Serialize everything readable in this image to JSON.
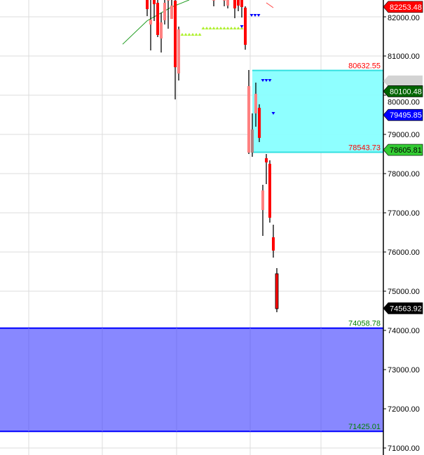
{
  "chart_data": {
    "type": "candlestick",
    "title": "",
    "ylim": [
      70830,
      82430
    ],
    "y_ticks": [
      "82000.00",
      "81000.00",
      "80000.00",
      "79000.00",
      "78000.00",
      "77000.00",
      "76000.00",
      "75000.00",
      "74000.00",
      "73000.00",
      "72000.00",
      "71000.00"
    ],
    "grid": true,
    "colors": {
      "down": "#ff0000",
      "down_light": "#ff8080",
      "wick": "#000000",
      "ma_line": "#1a9a1a",
      "zone_cyan": "#88ffff",
      "zone_blue": "#8888ff"
    },
    "candles": [
      [
        0,
        82430,
        82430,
        82018,
        82196,
        "down"
      ],
      [
        1,
        81929,
        82430,
        81143,
        81804,
        "light"
      ],
      [
        2,
        82430,
        82430,
        81893,
        82321,
        "down"
      ],
      [
        3,
        82357,
        82430,
        81482,
        81536,
        "down"
      ],
      [
        4,
        81446,
        82107,
        81089,
        81857,
        "light"
      ],
      [
        5,
        81911,
        82430,
        81804,
        82357,
        "light"
      ],
      [
        6,
        82430,
        82430,
        81696,
        82430,
        "light"
      ],
      [
        7,
        81946,
        82430,
        81946,
        82286,
        "light"
      ],
      [
        8,
        82411,
        82430,
        79893,
        80714,
        "down"
      ],
      [
        9,
        80554,
        81750,
        80375,
        81679,
        "light"
      ],
      [
        19,
        82430,
        82430,
        82268,
        82430,
        "light"
      ],
      [
        22,
        82430,
        82430,
        82268,
        82430,
        "light"
      ],
      [
        23,
        82286,
        82430,
        82214,
        82430,
        "light"
      ],
      [
        25,
        82430,
        82430,
        81964,
        82214,
        "down"
      ],
      [
        26,
        82430,
        82430,
        82143,
        82286,
        "down"
      ],
      [
        27,
        82430,
        82430,
        81982,
        82250,
        "down"
      ],
      [
        28,
        82232,
        82268,
        81161,
        81286,
        "down"
      ],
      [
        29,
        78536,
        80643,
        78500,
        80232,
        "light"
      ],
      [
        30,
        78536,
        79536,
        78429,
        79125,
        "grey"
      ],
      [
        31,
        79536,
        80321,
        79196,
        80036,
        "light"
      ],
      [
        32,
        79679,
        79768,
        78804,
        78911,
        "down"
      ],
      [
        33,
        77071,
        77714,
        76411,
        77571,
        "light"
      ],
      [
        34,
        78393,
        78500,
        77732,
        78286,
        "down"
      ],
      [
        35,
        78250,
        78339,
        76750,
        76875,
        "down"
      ],
      [
        36,
        76375,
        76696,
        75857,
        76036,
        "down"
      ],
      [
        37,
        75446,
        75589,
        74464,
        74554,
        "down_outline"
      ]
    ],
    "ma_line": [
      [
        -7,
        81300
      ],
      [
        0,
        81900
      ],
      [
        7,
        82250
      ],
      [
        12,
        82430
      ]
    ],
    "zones": [
      {
        "top": "80632.55",
        "bottom": "78543.73",
        "start": 30,
        "color": "#88ffff",
        "label_color": "#ff0000"
      },
      {
        "top": "74058.78",
        "bottom": "71425.01",
        "start": -42,
        "color": "#8888ff",
        "label_color": "#008000"
      }
    ],
    "price_tags": [
      {
        "value": "82253.48",
        "bg": "#ff0000",
        "fg": "#ffffff"
      },
      {
        "value": "",
        "bg": "#d3d3d3",
        "fg": "#000000",
        "price": 80360
      },
      {
        "value": "80100.48",
        "bg": "#006400",
        "fg": "#ffffff"
      },
      {
        "value": "79495.85",
        "bg": "#0000ff",
        "fg": "#ffffff"
      },
      {
        "value": "78605.81",
        "bg": "#33cc33",
        "fg": "#000000"
      },
      {
        "value": "74563.92",
        "bg": "#000000",
        "fg": "#ffffff"
      }
    ]
  }
}
